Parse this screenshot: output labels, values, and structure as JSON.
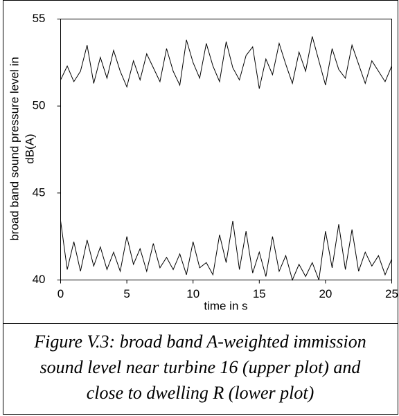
{
  "chart_data": {
    "type": "line",
    "xlabel": "time in s",
    "ylabel": [
      "broad band sound pressure level in",
      "dB(A)"
    ],
    "caption": [
      "Figure V.3: broad band A-weighted immission",
      "sound level near turbine 16 (upper plot) and",
      "close to dwelling R (lower plot)"
    ],
    "x": [
      0,
      0.5,
      1,
      1.5,
      2,
      2.5,
      3,
      3.5,
      4,
      4.5,
      5,
      5.5,
      6,
      6.5,
      7,
      7.5,
      8,
      8.5,
      9,
      9.5,
      10,
      10.5,
      11,
      11.5,
      12,
      12.5,
      13,
      13.5,
      14,
      14.5,
      15,
      15.5,
      16,
      16.5,
      17,
      17.5,
      18,
      18.5,
      19,
      19.5,
      20,
      20.5,
      21,
      21.5,
      22,
      22.5,
      23,
      23.5,
      24,
      24.5,
      25
    ],
    "series": [
      {
        "color": "#000000",
        "values": [
          51.5,
          52.3,
          51.4,
          52.0,
          53.5,
          51.3,
          52.8,
          51.6,
          53.2,
          52.0,
          51.1,
          52.6,
          51.5,
          53.0,
          52.2,
          51.4,
          53.3,
          52.0,
          51.2,
          53.8,
          52.5,
          51.6,
          53.6,
          52.3,
          51.4,
          53.7,
          52.2,
          51.5,
          52.9,
          53.4,
          51.0,
          52.7,
          51.8,
          53.6,
          52.4,
          51.3,
          53.1,
          52.0,
          54.0,
          52.6,
          51.2,
          53.3,
          52.1,
          51.6,
          53.5,
          52.4,
          51.3,
          52.6,
          52.0,
          51.4,
          52.3
        ]
      },
      {
        "color": "#000000",
        "values": [
          43.4,
          40.6,
          42.2,
          40.5,
          42.3,
          40.8,
          41.9,
          40.6,
          41.6,
          40.5,
          42.5,
          40.9,
          41.8,
          40.5,
          42.1,
          40.7,
          41.3,
          40.6,
          41.5,
          40.3,
          42.2,
          40.7,
          41.0,
          40.3,
          42.6,
          41.0,
          43.4,
          40.6,
          42.8,
          40.4,
          41.6,
          40.2,
          42.5,
          40.5,
          41.4,
          40.0,
          40.9,
          40.2,
          41.0,
          40.0,
          42.8,
          40.7,
          43.2,
          40.6,
          42.9,
          40.5,
          41.6,
          40.8,
          41.4,
          40.3,
          41.2
        ]
      }
    ],
    "xlim": [
      0,
      25
    ],
    "xticks": [
      0,
      5,
      10,
      15,
      20,
      25
    ],
    "ylim": [
      40,
      55
    ],
    "yticks": [
      40,
      45,
      50,
      55
    ],
    "grid": false
  }
}
